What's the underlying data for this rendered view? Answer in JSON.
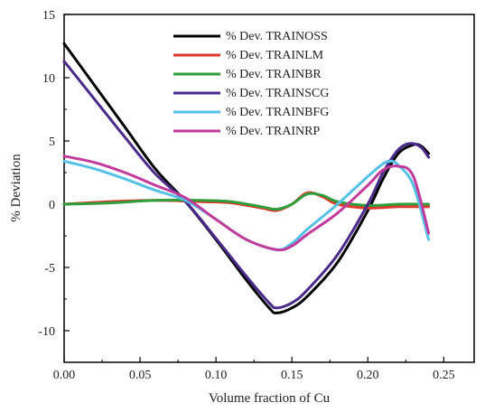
{
  "chart_data": {
    "type": "line",
    "xlabel": "Volume fraction of Cu",
    "ylabel": "% Deviation",
    "xlim": [
      0,
      0.27
    ],
    "ylim": [
      -12.5,
      15
    ],
    "xticks": [
      0.0,
      0.05,
      0.1,
      0.15,
      0.2,
      0.25
    ],
    "xtick_labels": [
      "0.00",
      "0.05",
      "0.10",
      "0.15",
      "0.20",
      "0.25"
    ],
    "yticks": [
      -10,
      -5,
      0,
      5,
      10,
      15
    ],
    "ytick_labels": [
      "-10",
      "-5",
      "0",
      "5",
      "10",
      "15"
    ],
    "legend_position": "top-center",
    "grid": false,
    "series": [
      {
        "name": "% Dev. TRAINOSS",
        "color": "#000000",
        "points": [
          [
            0.0,
            12.7
          ],
          [
            0.02,
            9.4
          ],
          [
            0.04,
            6.1
          ],
          [
            0.06,
            2.8
          ],
          [
            0.08,
            0.2
          ],
          [
            0.1,
            -2.8
          ],
          [
            0.12,
            -6.0
          ],
          [
            0.135,
            -8.2
          ],
          [
            0.14,
            -8.6
          ],
          [
            0.15,
            -8.2
          ],
          [
            0.16,
            -7.3
          ],
          [
            0.18,
            -4.6
          ],
          [
            0.2,
            -0.5
          ],
          [
            0.21,
            2.0
          ],
          [
            0.22,
            4.0
          ],
          [
            0.23,
            4.7
          ],
          [
            0.235,
            4.6
          ],
          [
            0.24,
            4.0
          ]
        ]
      },
      {
        "name": "% Dev. TRAINLM",
        "color": "#e0382c",
        "points": [
          [
            0.0,
            0.0
          ],
          [
            0.03,
            0.2
          ],
          [
            0.06,
            0.3
          ],
          [
            0.09,
            0.2
          ],
          [
            0.11,
            0.1
          ],
          [
            0.13,
            -0.3
          ],
          [
            0.14,
            -0.5
          ],
          [
            0.15,
            0.0
          ],
          [
            0.16,
            0.9
          ],
          [
            0.17,
            0.6
          ],
          [
            0.18,
            0.0
          ],
          [
            0.2,
            -0.3
          ],
          [
            0.22,
            -0.2
          ],
          [
            0.24,
            -0.2
          ]
        ]
      },
      {
        "name": "% Dev. TRAINBR",
        "color": "#2f9e3a",
        "points": [
          [
            0.0,
            0.0
          ],
          [
            0.03,
            0.1
          ],
          [
            0.06,
            0.3
          ],
          [
            0.09,
            0.3
          ],
          [
            0.11,
            0.2
          ],
          [
            0.13,
            -0.2
          ],
          [
            0.14,
            -0.4
          ],
          [
            0.15,
            0.0
          ],
          [
            0.16,
            0.8
          ],
          [
            0.17,
            0.7
          ],
          [
            0.18,
            0.2
          ],
          [
            0.2,
            -0.1
          ],
          [
            0.22,
            0.0
          ],
          [
            0.24,
            0.0
          ]
        ]
      },
      {
        "name": "% Dev. TRAINSCG",
        "color": "#4a2b8c",
        "points": [
          [
            0.0,
            11.3
          ],
          [
            0.02,
            8.3
          ],
          [
            0.04,
            5.3
          ],
          [
            0.06,
            2.4
          ],
          [
            0.08,
            0.2
          ],
          [
            0.1,
            -2.7
          ],
          [
            0.12,
            -5.7
          ],
          [
            0.135,
            -7.8
          ],
          [
            0.14,
            -8.2
          ],
          [
            0.15,
            -7.8
          ],
          [
            0.16,
            -6.8
          ],
          [
            0.18,
            -4.0
          ],
          [
            0.2,
            0.0
          ],
          [
            0.21,
            2.5
          ],
          [
            0.22,
            4.3
          ],
          [
            0.228,
            4.8
          ],
          [
            0.235,
            4.5
          ],
          [
            0.24,
            3.7
          ]
        ]
      },
      {
        "name": "% Dev. TRAINBFG",
        "color": "#56c1e6",
        "points": [
          [
            0.0,
            3.4
          ],
          [
            0.02,
            2.8
          ],
          [
            0.04,
            2.0
          ],
          [
            0.06,
            1.1
          ],
          [
            0.08,
            0.3
          ],
          [
            0.1,
            -1.2
          ],
          [
            0.12,
            -2.8
          ],
          [
            0.14,
            -3.6
          ],
          [
            0.15,
            -3.1
          ],
          [
            0.16,
            -2.0
          ],
          [
            0.18,
            0.0
          ],
          [
            0.2,
            2.2
          ],
          [
            0.21,
            3.2
          ],
          [
            0.215,
            3.4
          ],
          [
            0.22,
            3.1
          ],
          [
            0.23,
            1.5
          ],
          [
            0.24,
            -2.8
          ]
        ]
      },
      {
        "name": "% Dev. TRAINRP",
        "color": "#c23b9c",
        "points": [
          [
            0.0,
            3.8
          ],
          [
            0.02,
            3.3
          ],
          [
            0.04,
            2.5
          ],
          [
            0.06,
            1.5
          ],
          [
            0.08,
            0.5
          ],
          [
            0.1,
            -1.2
          ],
          [
            0.12,
            -2.8
          ],
          [
            0.14,
            -3.6
          ],
          [
            0.15,
            -3.3
          ],
          [
            0.16,
            -2.4
          ],
          [
            0.18,
            -0.7
          ],
          [
            0.2,
            1.5
          ],
          [
            0.21,
            2.7
          ],
          [
            0.22,
            3.0
          ],
          [
            0.23,
            2.2
          ],
          [
            0.24,
            -2.3
          ]
        ]
      }
    ]
  }
}
